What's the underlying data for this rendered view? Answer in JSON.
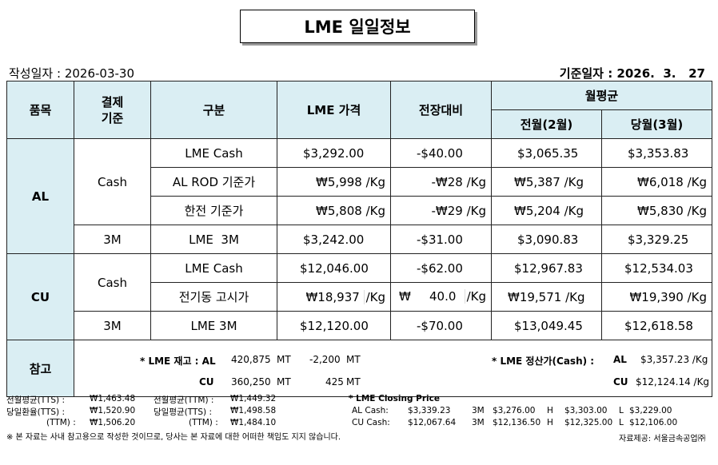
{
  "title": "LME 일일정보",
  "write_date_label": "작성일자 :",
  "write_date": "2026-03-30",
  "base_date_label": "기준일자 :",
  "base_date": "2026.  3.   27",
  "headers": {
    "item": "품목",
    "settle": "결제\n기준",
    "category": "구분",
    "lme_price": "LME 가격",
    "change": "전장대비",
    "monthly_avg": "월평균",
    "prev_month": "전월(2월)",
    "curr_month": "당월(3월)"
  },
  "rows": {
    "al_label": "AL",
    "cu_label": "CU",
    "cash_label": "Cash",
    "m3_label": "3M",
    "al_cash": {
      "name": "LME Cash",
      "price": "$3,292.00",
      "change": "-$40.00",
      "prev": "$3,065.35",
      "curr": "$3,353.83"
    },
    "al_rod": {
      "name": "AL ROD 기준가",
      "price": "₩5,998",
      "price_unit": "/Kg",
      "change": "-₩28",
      "change_unit": "/Kg",
      "prev": "₩5,387",
      "prev_unit": "/Kg",
      "curr": "₩6,018",
      "curr_unit": "/Kg"
    },
    "al_kepco": {
      "name": "한전 기준가",
      "price": "₩5,808",
      "price_unit": "/Kg",
      "change": "-₩29",
      "change_unit": "/Kg",
      "prev": "₩5,204",
      "prev_unit": "/Kg",
      "curr": "₩5,830",
      "curr_unit": "/Kg"
    },
    "al_3m": {
      "name": "LME  3M",
      "price": "$3,242.00",
      "change": "-$31.00",
      "prev": "$3,090.83",
      "curr": "$3,329.25"
    },
    "cu_cash": {
      "name": "LME Cash",
      "price": "$12,046.00",
      "change": "-$62.00",
      "prev": "$12,967.83",
      "curr": "$12,534.03"
    },
    "cu_notice": {
      "name": "전기동 고시가",
      "price": "₩18,937",
      "price_unit": "/Kg",
      "change_cur": "₩",
      "change": "40.0",
      "change_unit": "/Kg",
      "prev": "₩19,571",
      "prev_unit": "/Kg",
      "curr": "₩19,390",
      "curr_unit": "/Kg"
    },
    "cu_3m": {
      "name": "LME 3M",
      "price": "$12,120.00",
      "change": "-$70.00",
      "prev": "$13,049.45",
      "curr": "$12,618.58"
    }
  },
  "note": {
    "label": "참고",
    "stock_label": "* LME 재고 : AL",
    "al_stock": "420,875",
    "mt1": "MT",
    "al_stock_change": "-2,200",
    "mt2": "MT",
    "cu_label": "CU",
    "cu_stock": "360,250",
    "mt3": "MT",
    "cu_stock_change": "425",
    "mt4": "MT",
    "settle_label": "* LME 정산가(Cash) :",
    "al": "AL",
    "al_settle": "$3,357.23 /Kg",
    "cu": "CU",
    "cu_settle": "$12,124.14 /Kg"
  },
  "footer": {
    "r1_l1": "전월평균(TTS) :",
    "r1_v1": "₩1,463.48",
    "r1_l2": "전월평균(TTM) :",
    "r1_v2": "₩1,449.32",
    "r2_l1": "당일환율(TTS) :",
    "r2_v1": "₩1,520.90",
    "r2_l2": "당일평균(TTS) :",
    "r2_v2": "₩1,498.58",
    "r3_l1": "(TTM) :",
    "r3_v1": "₩1,506.20",
    "r3_l2": "(TTM) :",
    "r3_v2": "₩1,484.10",
    "closing_title": "* LME Closing Price",
    "al_cash_label": "AL  Cash:",
    "al_cash": "$3,339.23",
    "al_3m_label": "3M",
    "al_3m": "$3,276.00",
    "al_h_label": "H",
    "al_h": "$3,303.00",
    "al_l_label": "L",
    "al_l": "$3,229.00",
    "cu_cash_label": "CU  Cash:",
    "cu_cash": "$12,067.64",
    "cu_3m_label": "3M",
    "cu_3m": "$12,136.50",
    "cu_h_label": "H",
    "cu_h": "$12,325.00",
    "cu_l_label": "L",
    "cu_l": "$12,106.00",
    "disclaimer": "※ 본 자료는 사내 참고용으로 작성한 것이므로, 당사는 본 자료에 대한 어떠한 책임도 지지 않습니다.",
    "source": "자료제공: 서울금속공업㈜"
  }
}
